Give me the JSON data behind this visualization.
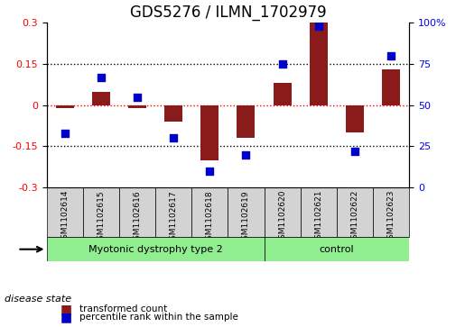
{
  "title": "GDS5276 / ILMN_1702979",
  "samples": [
    "GSM1102614",
    "GSM1102615",
    "GSM1102616",
    "GSM1102617",
    "GSM1102618",
    "GSM1102619",
    "GSM1102620",
    "GSM1102621",
    "GSM1102622",
    "GSM1102623"
  ],
  "transformed_count": [
    -0.01,
    0.05,
    -0.01,
    -0.06,
    -0.2,
    -0.12,
    0.08,
    0.3,
    -0.1,
    0.13
  ],
  "percentile_rank": [
    33,
    67,
    55,
    30,
    10,
    20,
    75,
    98,
    22,
    80
  ],
  "groups": [
    {
      "label": "Myotonic dystrophy type 2",
      "indices": [
        0,
        1,
        2,
        3,
        4,
        5
      ],
      "color": "#90EE90"
    },
    {
      "label": "control",
      "indices": [
        6,
        7,
        8,
        9
      ],
      "color": "#90EE90"
    }
  ],
  "bar_color": "#8B1A1A",
  "scatter_color": "#0000CD",
  "ylim_left": [
    -0.3,
    0.3
  ],
  "ylim_right": [
    0,
    100
  ],
  "yticks_left": [
    -0.3,
    -0.15,
    0.0,
    0.15,
    0.3
  ],
  "yticks_right": [
    0,
    25,
    50,
    75,
    100
  ],
  "ytick_labels_right": [
    "0",
    "25",
    "50",
    "75",
    "100%"
  ],
  "dotted_lines": [
    -0.15,
    0.0,
    0.15
  ],
  "red_dotted": 0.0,
  "disease_state_label": "disease state",
  "legend_bar_label": "transformed count",
  "legend_scatter_label": "percentile rank within the sample",
  "bar_width": 0.5,
  "scatter_marker": "s",
  "scatter_size": 40,
  "background_plot": "#FFFFFF",
  "background_label_boxes": "#D3D3D3",
  "title_fontsize": 12,
  "tick_fontsize": 8,
  "label_fontsize": 8
}
